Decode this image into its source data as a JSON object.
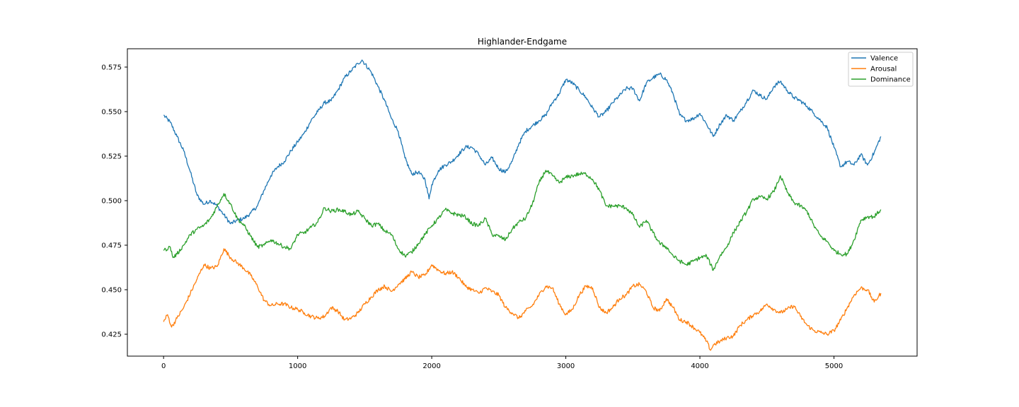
{
  "chart_data": {
    "type": "line",
    "title": "Highlander-Endgame",
    "xlabel": "",
    "ylabel": "",
    "xlim": [
      -270,
      5620
    ],
    "ylim": [
      0.4127,
      0.5853
    ],
    "xticks": [
      0,
      1000,
      2000,
      3000,
      4000,
      5000
    ],
    "xtick_labels": [
      "0",
      "1000",
      "2000",
      "3000",
      "4000",
      "5000"
    ],
    "yticks": [
      0.425,
      0.45,
      0.475,
      0.5,
      0.525,
      0.55,
      0.575
    ],
    "ytick_labels": [
      "0.425",
      "0.450",
      "0.475",
      "0.500",
      "0.525",
      "0.550",
      "0.575"
    ],
    "grid": false,
    "legend_position": "upper right",
    "series": [
      {
        "name": "Valence",
        "color": "#1f77b4",
        "x": [
          0,
          50,
          100,
          150,
          200,
          250,
          300,
          350,
          400,
          450,
          500,
          550,
          600,
          650,
          700,
          750,
          800,
          850,
          900,
          950,
          1000,
          1050,
          1100,
          1150,
          1200,
          1250,
          1300,
          1350,
          1400,
          1450,
          1480,
          1550,
          1600,
          1650,
          1700,
          1750,
          1800,
          1850,
          1900,
          1950,
          1980,
          2000,
          2050,
          2100,
          2150,
          2200,
          2250,
          2300,
          2350,
          2400,
          2450,
          2500,
          2550,
          2600,
          2650,
          2700,
          2750,
          2800,
          2850,
          2900,
          2950,
          3000,
          3050,
          3100,
          3150,
          3200,
          3250,
          3300,
          3350,
          3400,
          3450,
          3500,
          3550,
          3600,
          3650,
          3700,
          3750,
          3800,
          3850,
          3900,
          3950,
          4000,
          4050,
          4100,
          4150,
          4200,
          4250,
          4300,
          4350,
          4400,
          4450,
          4500,
          4550,
          4600,
          4650,
          4700,
          4750,
          4800,
          4850,
          4900,
          4950,
          5000,
          5050,
          5100,
          5150,
          5200,
          5250,
          5300,
          5350
        ],
        "values": [
          0.548,
          0.544,
          0.536,
          0.528,
          0.516,
          0.503,
          0.498,
          0.5,
          0.497,
          0.492,
          0.487,
          0.489,
          0.49,
          0.493,
          0.497,
          0.506,
          0.514,
          0.519,
          0.522,
          0.528,
          0.533,
          0.538,
          0.545,
          0.55,
          0.555,
          0.556,
          0.562,
          0.569,
          0.573,
          0.577,
          0.579,
          0.572,
          0.564,
          0.556,
          0.546,
          0.539,
          0.524,
          0.515,
          0.516,
          0.512,
          0.501,
          0.509,
          0.517,
          0.52,
          0.522,
          0.526,
          0.53,
          0.53,
          0.526,
          0.52,
          0.524,
          0.518,
          0.516,
          0.522,
          0.532,
          0.539,
          0.542,
          0.545,
          0.548,
          0.555,
          0.56,
          0.568,
          0.566,
          0.562,
          0.558,
          0.552,
          0.547,
          0.55,
          0.555,
          0.559,
          0.563,
          0.563,
          0.556,
          0.566,
          0.569,
          0.571,
          0.568,
          0.56,
          0.548,
          0.545,
          0.546,
          0.549,
          0.543,
          0.536,
          0.543,
          0.548,
          0.545,
          0.55,
          0.556,
          0.562,
          0.559,
          0.557,
          0.564,
          0.567,
          0.562,
          0.558,
          0.556,
          0.553,
          0.549,
          0.545,
          0.541,
          0.53,
          0.519,
          0.522,
          0.52,
          0.526,
          0.52,
          0.527,
          0.536
        ]
      },
      {
        "name": "Arousal",
        "color": "#ff7f0e",
        "x": [
          0,
          30,
          60,
          100,
          150,
          200,
          250,
          300,
          350,
          400,
          450,
          500,
          550,
          600,
          650,
          700,
          750,
          800,
          850,
          900,
          950,
          1000,
          1050,
          1100,
          1150,
          1200,
          1250,
          1300,
          1350,
          1400,
          1450,
          1500,
          1550,
          1600,
          1650,
          1700,
          1750,
          1800,
          1850,
          1900,
          1950,
          2000,
          2050,
          2100,
          2150,
          2200,
          2250,
          2300,
          2350,
          2400,
          2450,
          2500,
          2550,
          2600,
          2650,
          2700,
          2750,
          2800,
          2850,
          2900,
          2950,
          3000,
          3050,
          3100,
          3150,
          3200,
          3250,
          3300,
          3350,
          3400,
          3450,
          3500,
          3550,
          3600,
          3650,
          3700,
          3750,
          3800,
          3850,
          3900,
          3950,
          4000,
          4050,
          4080,
          4100,
          4150,
          4200,
          4250,
          4300,
          4350,
          4400,
          4450,
          4500,
          4550,
          4600,
          4650,
          4700,
          4750,
          4800,
          4850,
          4900,
          4950,
          5000,
          5050,
          5100,
          5150,
          5200,
          5250,
          5300,
          5350
        ],
        "values": [
          0.432,
          0.436,
          0.429,
          0.434,
          0.44,
          0.448,
          0.456,
          0.464,
          0.462,
          0.463,
          0.473,
          0.468,
          0.465,
          0.462,
          0.458,
          0.452,
          0.444,
          0.441,
          0.442,
          0.442,
          0.44,
          0.439,
          0.437,
          0.435,
          0.434,
          0.435,
          0.44,
          0.438,
          0.433,
          0.434,
          0.437,
          0.442,
          0.446,
          0.45,
          0.452,
          0.449,
          0.453,
          0.456,
          0.46,
          0.457,
          0.458,
          0.464,
          0.461,
          0.459,
          0.46,
          0.457,
          0.452,
          0.45,
          0.448,
          0.451,
          0.449,
          0.447,
          0.44,
          0.437,
          0.434,
          0.438,
          0.441,
          0.447,
          0.452,
          0.451,
          0.442,
          0.436,
          0.439,
          0.447,
          0.452,
          0.451,
          0.44,
          0.437,
          0.44,
          0.445,
          0.447,
          0.452,
          0.453,
          0.449,
          0.44,
          0.438,
          0.445,
          0.44,
          0.433,
          0.432,
          0.429,
          0.426,
          0.421,
          0.416,
          0.419,
          0.421,
          0.423,
          0.424,
          0.43,
          0.433,
          0.436,
          0.438,
          0.442,
          0.439,
          0.437,
          0.439,
          0.441,
          0.435,
          0.43,
          0.427,
          0.426,
          0.425,
          0.427,
          0.433,
          0.44,
          0.447,
          0.451,
          0.45,
          0.443,
          0.448
        ]
      },
      {
        "name": "Dominance",
        "color": "#2ca02c",
        "x": [
          0,
          50,
          70,
          100,
          150,
          200,
          250,
          300,
          350,
          400,
          450,
          500,
          550,
          600,
          650,
          700,
          750,
          800,
          850,
          900,
          950,
          1000,
          1050,
          1100,
          1150,
          1200,
          1250,
          1300,
          1350,
          1400,
          1450,
          1500,
          1550,
          1600,
          1650,
          1700,
          1750,
          1800,
          1850,
          1900,
          1950,
          2000,
          2050,
          2100,
          2150,
          2200,
          2250,
          2300,
          2350,
          2400,
          2450,
          2500,
          2550,
          2600,
          2650,
          2700,
          2750,
          2800,
          2850,
          2900,
          2950,
          3000,
          3050,
          3100,
          3150,
          3200,
          3250,
          3300,
          3350,
          3400,
          3450,
          3500,
          3550,
          3600,
          3650,
          3700,
          3750,
          3800,
          3850,
          3900,
          3950,
          4000,
          4050,
          4100,
          4150,
          4200,
          4250,
          4300,
          4350,
          4400,
          4450,
          4500,
          4550,
          4580,
          4600,
          4650,
          4700,
          4750,
          4800,
          4850,
          4900,
          4950,
          5000,
          5050,
          5100,
          5150,
          5200,
          5250,
          5300,
          5350
        ],
        "values": [
          0.472,
          0.474,
          0.468,
          0.47,
          0.475,
          0.481,
          0.484,
          0.486,
          0.49,
          0.497,
          0.504,
          0.498,
          0.49,
          0.486,
          0.48,
          0.474,
          0.475,
          0.478,
          0.476,
          0.474,
          0.473,
          0.481,
          0.482,
          0.485,
          0.488,
          0.496,
          0.494,
          0.495,
          0.494,
          0.492,
          0.494,
          0.49,
          0.486,
          0.487,
          0.483,
          0.481,
          0.473,
          0.469,
          0.471,
          0.476,
          0.481,
          0.486,
          0.49,
          0.495,
          0.493,
          0.492,
          0.491,
          0.487,
          0.486,
          0.49,
          0.481,
          0.48,
          0.478,
          0.484,
          0.488,
          0.49,
          0.498,
          0.51,
          0.517,
          0.514,
          0.51,
          0.513,
          0.514,
          0.515,
          0.515,
          0.512,
          0.506,
          0.497,
          0.497,
          0.497,
          0.496,
          0.492,
          0.485,
          0.489,
          0.482,
          0.476,
          0.474,
          0.469,
          0.466,
          0.464,
          0.466,
          0.468,
          0.469,
          0.461,
          0.469,
          0.474,
          0.482,
          0.488,
          0.494,
          0.501,
          0.502,
          0.501,
          0.505,
          0.51,
          0.514,
          0.505,
          0.499,
          0.497,
          0.494,
          0.486,
          0.48,
          0.477,
          0.472,
          0.47,
          0.47,
          0.478,
          0.489,
          0.491,
          0.491,
          0.495
        ]
      }
    ]
  }
}
